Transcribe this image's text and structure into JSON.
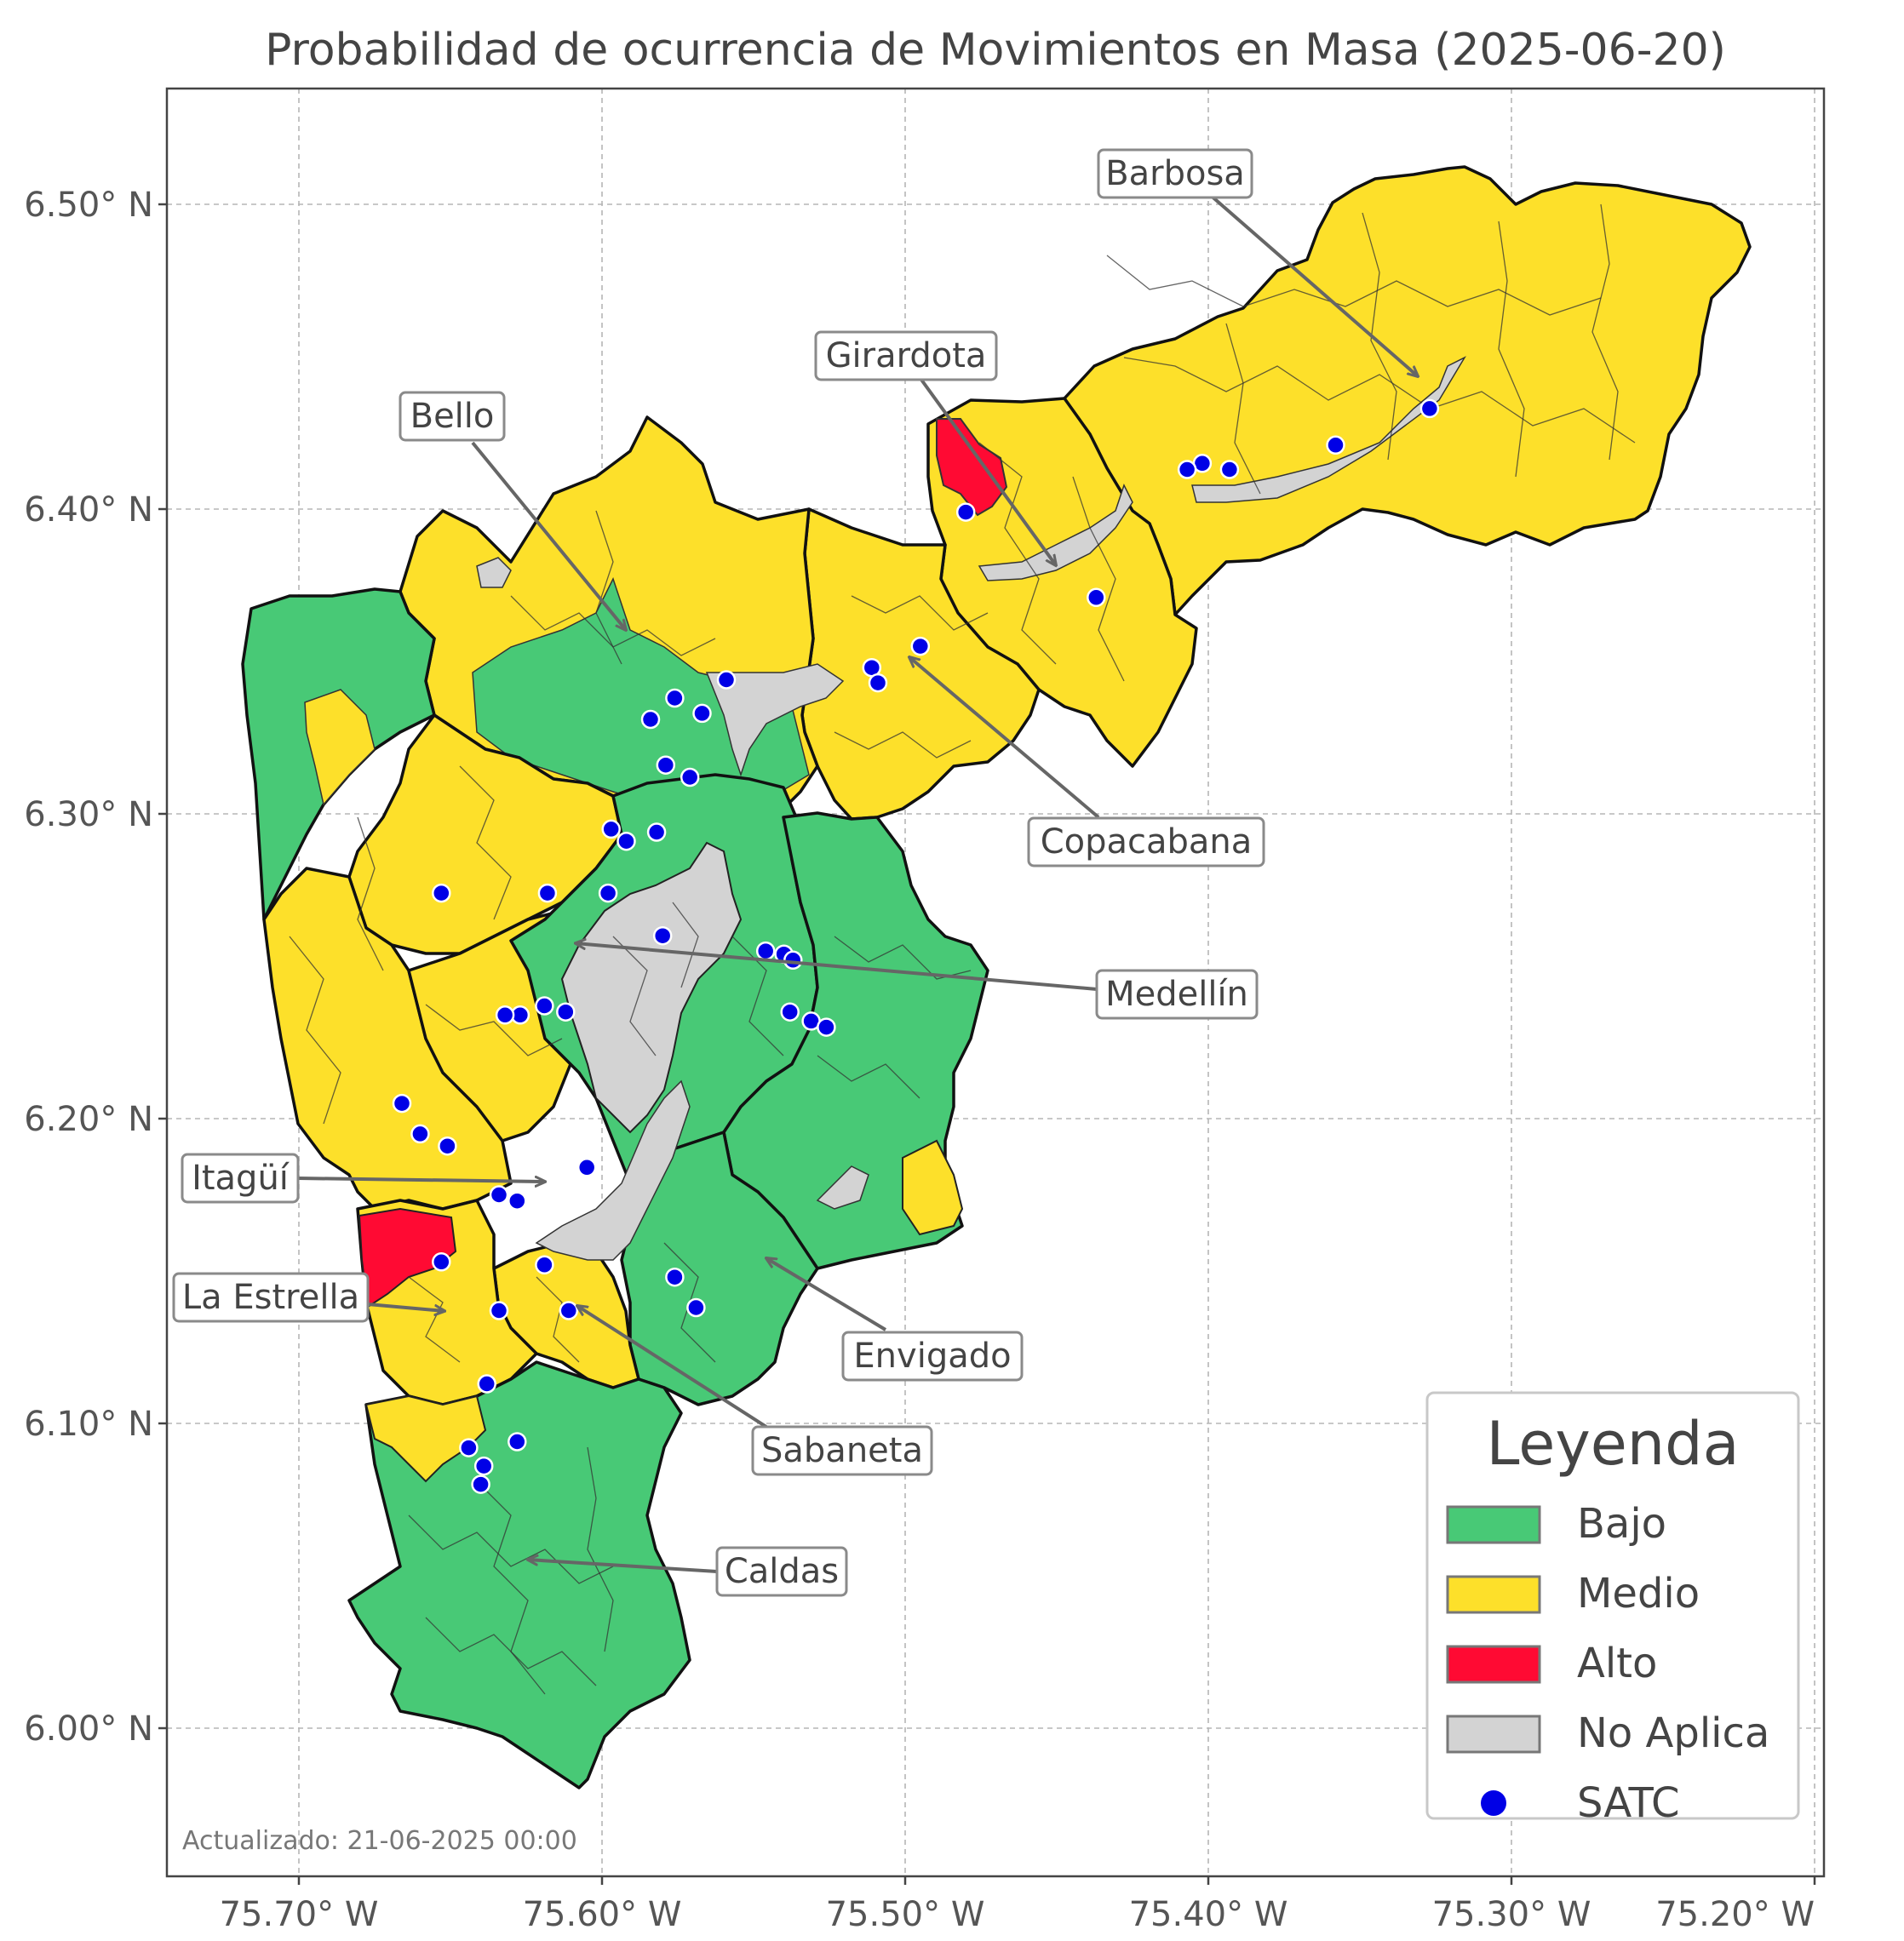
{
  "title": "Probabilidad de ocurrencia de Movimientos en Masa (2025-06-20)",
  "x_ticks": [
    "75.70° W",
    "75.60° W",
    "75.50° W",
    "75.40° W",
    "75.30° W",
    "75.20° W"
  ],
  "y_ticks": [
    "6.50° N",
    "6.40° N",
    "6.30° N",
    "6.20° N",
    "6.10° N",
    "6.00° N"
  ],
  "legend": {
    "title": "Leyenda",
    "items": [
      {
        "label": "Bajo",
        "color": "#48c976",
        "kind": "patch"
      },
      {
        "label": "Medio",
        "color": "#fde02a",
        "kind": "patch"
      },
      {
        "label": "Alto",
        "color": "#ff0a33",
        "kind": "patch"
      },
      {
        "label": "No Aplica",
        "color": "#d3d3d3",
        "kind": "patch"
      },
      {
        "label": "SATC",
        "color": "#0000e6",
        "kind": "marker"
      }
    ]
  },
  "municipalities": [
    {
      "name": "Barbosa",
      "risk": "Medio"
    },
    {
      "name": "Girardota",
      "risk": "Medio"
    },
    {
      "name": "Bello",
      "risk": "Medio"
    },
    {
      "name": "Copacabana",
      "risk": "Medio"
    },
    {
      "name": "Medellín",
      "risk": "Bajo"
    },
    {
      "name": "Itagüí",
      "risk": "Medio"
    },
    {
      "name": "La Estrella",
      "risk": "Medio"
    },
    {
      "name": "Envigado",
      "risk": "Bajo"
    },
    {
      "name": "Sabaneta",
      "risk": "Medio"
    },
    {
      "name": "Caldas",
      "risk": "Bajo"
    }
  ],
  "annotations": {
    "barbosa": "Barbosa",
    "girardota": "Girardota",
    "bello": "Bello",
    "copacabana": "Copacabana",
    "medellin": "Medellín",
    "itagui": "Itagüí",
    "la_estrella": "La Estrella",
    "envigado": "Envigado",
    "sabaneta": "Sabaneta",
    "caldas": "Caldas"
  },
  "satc_stations": [
    [
      -75.327,
      6.433
    ],
    [
      -75.358,
      6.421
    ],
    [
      -75.393,
      6.413
    ],
    [
      -75.402,
      6.415
    ],
    [
      -75.407,
      6.413
    ],
    [
      -75.48,
      6.399
    ],
    [
      -75.437,
      6.371
    ],
    [
      -75.495,
      6.355
    ],
    [
      -75.511,
      6.348
    ],
    [
      -75.509,
      6.343
    ],
    [
      -75.559,
      6.344
    ],
    [
      -75.567,
      6.333
    ],
    [
      -75.576,
      6.338
    ],
    [
      -75.584,
      6.331
    ],
    [
      -75.579,
      6.316
    ],
    [
      -75.571,
      6.312
    ],
    [
      -75.582,
      6.294
    ],
    [
      -75.597,
      6.295
    ],
    [
      -75.592,
      6.291
    ],
    [
      -75.598,
      6.274
    ],
    [
      -75.618,
      6.274
    ],
    [
      -75.653,
      6.274
    ],
    [
      -75.58,
      6.26
    ],
    [
      -75.546,
      6.255
    ],
    [
      -75.54,
      6.254
    ],
    [
      -75.537,
      6.252
    ],
    [
      -75.538,
      6.235
    ],
    [
      -75.531,
      6.232
    ],
    [
      -75.526,
      6.23
    ],
    [
      -75.612,
      6.235
    ],
    [
      -75.619,
      6.237
    ],
    [
      -75.627,
      6.234
    ],
    [
      -75.632,
      6.234
    ],
    [
      -75.605,
      6.184
    ],
    [
      -75.666,
      6.205
    ],
    [
      -75.66,
      6.195
    ],
    [
      -75.651,
      6.191
    ],
    [
      -75.634,
      6.175
    ],
    [
      -75.628,
      6.173
    ],
    [
      -75.653,
      6.153
    ],
    [
      -75.619,
      6.152
    ],
    [
      -75.634,
      6.137
    ],
    [
      -75.611,
      6.137
    ],
    [
      -75.576,
      6.148
    ],
    [
      -75.569,
      6.138
    ],
    [
      -75.638,
      6.113
    ],
    [
      -75.644,
      6.092
    ],
    [
      -75.628,
      6.094
    ],
    [
      -75.639,
      6.086
    ],
    [
      -75.64,
      6.08
    ]
  ],
  "footer": "Actualizado: 21-06-2025 00:00"
}
